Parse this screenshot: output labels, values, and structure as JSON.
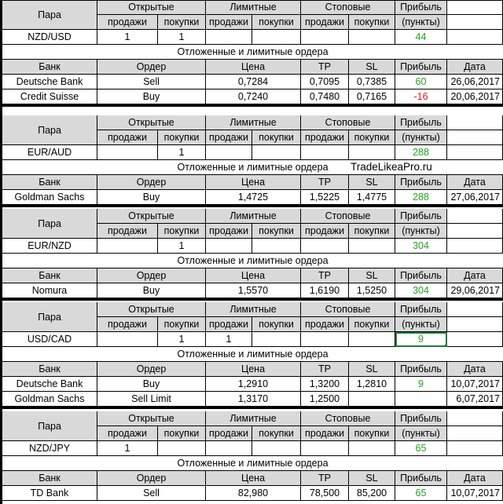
{
  "headers": {
    "pair": "Пара",
    "open": "Открытые",
    "limit": "Лимитные",
    "stop": "Стоповые",
    "profit": "Прибыль",
    "sell": "продажи",
    "buy": "покупки",
    "points": "(пункты)",
    "pending": "Отложенные и лимитные ордера",
    "bank": "Банк",
    "order": "Ордер",
    "price": "Цена",
    "tp": "TP",
    "sl": "SL",
    "date": "Дата"
  },
  "watermark": "TradeLikeaPro.ru",
  "blocks": [
    {
      "pair": "NZD/USD",
      "open_sell": "1",
      "open_buy": "1",
      "limit_sell": "",
      "limit_buy": "",
      "stop_sell": "",
      "stop_buy": "",
      "profit": "44",
      "orders": [
        {
          "bank": "Deutsche Bank",
          "order": "Sell",
          "price": "0,7284",
          "tp": "0,7095",
          "sl": "0,7385",
          "profit": "60",
          "profit_color": "green",
          "date": "26,06,2017"
        },
        {
          "bank": "Credit Suisse",
          "order": "Buy",
          "price": "0,7240",
          "tp": "0,7480",
          "sl": "0,7165",
          "profit": "-16",
          "profit_color": "red",
          "date": "20,06,2017"
        }
      ]
    },
    {
      "pair": "EUR/AUD",
      "open_sell": "",
      "open_buy": "1",
      "limit_sell": "",
      "limit_buy": "",
      "stop_sell": "",
      "stop_buy": "",
      "profit": "288",
      "orders": [
        {
          "bank": "Goldman Sachs",
          "order": "Buy",
          "price": "1,4725",
          "tp": "1,5225",
          "sl": "1,4775",
          "profit": "288",
          "profit_color": "green",
          "date": "27,06,2017"
        }
      ]
    },
    {
      "pair": "EUR/NZD",
      "open_sell": "",
      "open_buy": "1",
      "limit_sell": "",
      "limit_buy": "",
      "stop_sell": "",
      "stop_buy": "",
      "profit": "304",
      "orders": [
        {
          "bank": "Nomura",
          "order": "Buy",
          "price": "1,5570",
          "tp": "1,6190",
          "sl": "1,5250",
          "profit": "304",
          "profit_color": "green",
          "date": "29,06,2017"
        }
      ]
    },
    {
      "pair": "USD/CAD",
      "open_sell": "",
      "open_buy": "1",
      "limit_sell": "1",
      "limit_buy": "",
      "stop_sell": "",
      "stop_buy": "",
      "profit": "9",
      "orders": [
        {
          "bank": "Deutsche Bank",
          "order": "Buy",
          "price": "1,2910",
          "tp": "1,3200",
          "sl": "1,2810",
          "profit": "9",
          "profit_color": "green",
          "date": "10,07,2017"
        },
        {
          "bank": "Goldman Sachs",
          "order": "Sell Limit",
          "price": "1,3170",
          "tp": "1,2500",
          "sl": "",
          "profit": "",
          "profit_color": "green",
          "date": "6,07,2017"
        }
      ]
    },
    {
      "pair": "NZD/JPY",
      "open_sell": "1",
      "open_buy": "",
      "limit_sell": "",
      "limit_buy": "",
      "stop_sell": "",
      "stop_buy": "",
      "profit": "65",
      "orders": [
        {
          "bank": "TD Bank",
          "order": "Sell",
          "price": "82,980",
          "tp": "78,500",
          "sl": "85,200",
          "profit": "65",
          "profit_color": "green",
          "date": "10,07,2017"
        }
      ]
    }
  ]
}
